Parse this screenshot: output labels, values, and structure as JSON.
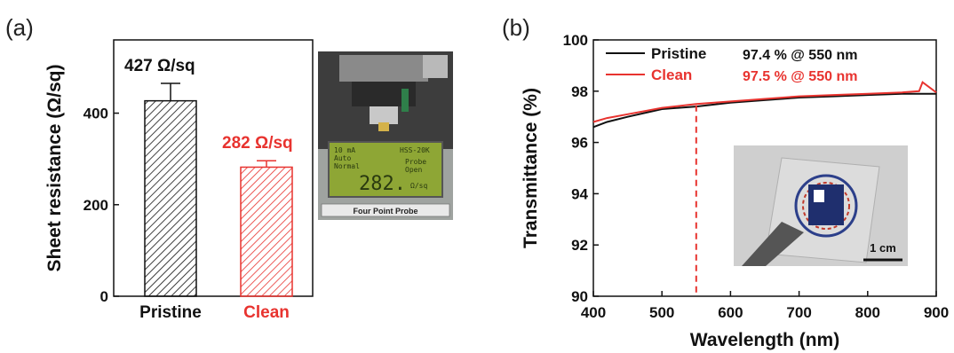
{
  "colors": {
    "pristine": "#111111",
    "clean": "#e8332f",
    "axis": "#111111"
  },
  "panel_a": {
    "label": "(a)",
    "photo": {
      "caption": "Four Point Probe",
      "screen_lines": [
        "10 mA",
        "Auto",
        "Normal",
        "HSS-20K",
        "Probe",
        "Open",
        "Ω/sq"
      ],
      "screen_value": "282."
    }
  },
  "panel_b": {
    "label": "(b)",
    "photo": {
      "scale_label": "1 cm"
    }
  },
  "chart_data": [
    {
      "type": "bar",
      "title": "",
      "xlabel": "",
      "ylabel": "Sheet  resistance (Ω/sq)",
      "categories": [
        "Pristine",
        "Clean"
      ],
      "values": [
        427,
        282
      ],
      "errors": [
        38,
        14
      ],
      "data_labels": [
        "427 Ω/sq",
        "282 Ω/sq"
      ],
      "ylim": [
        0,
        560
      ],
      "yticks": [
        0,
        200,
        400
      ],
      "grid": false,
      "hatch": true
    },
    {
      "type": "line",
      "title": "",
      "xlabel": "Wavelength (nm)",
      "ylabel": "Transmittance (%)",
      "xlim": [
        400,
        900
      ],
      "ylim": [
        90,
        100
      ],
      "xticks": [
        400,
        500,
        600,
        700,
        800,
        900
      ],
      "yticks": [
        90,
        92,
        94,
        96,
        98,
        100
      ],
      "grid": false,
      "legend_position": "top-left",
      "series": [
        {
          "name": "Pristine",
          "annotation": "97.4 % @ 550 nm",
          "x": [
            400,
            420,
            450,
            500,
            550,
            600,
            650,
            700,
            750,
            800,
            850,
            900
          ],
          "y": [
            96.6,
            96.8,
            97.0,
            97.3,
            97.4,
            97.55,
            97.65,
            97.75,
            97.8,
            97.85,
            97.9,
            97.9
          ]
        },
        {
          "name": "Clean",
          "annotation": "97.5 % @ 550 nm",
          "x": [
            400,
            420,
            450,
            500,
            550,
            600,
            650,
            700,
            750,
            800,
            850,
            875,
            880,
            900
          ],
          "y": [
            96.8,
            96.95,
            97.1,
            97.35,
            97.5,
            97.6,
            97.7,
            97.8,
            97.85,
            97.9,
            97.95,
            98.0,
            98.35,
            97.95
          ]
        }
      ],
      "marker_line_x": 550
    }
  ]
}
